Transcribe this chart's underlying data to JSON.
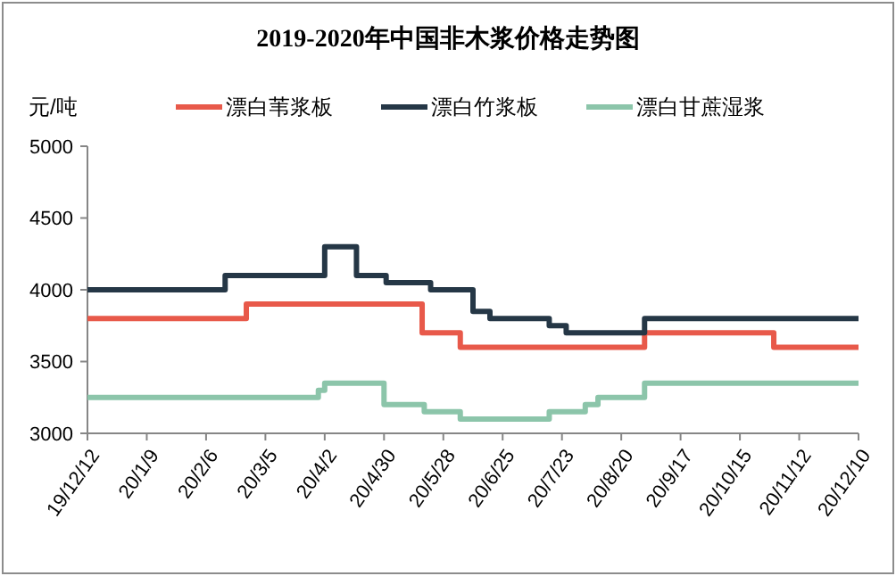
{
  "chart_data": {
    "type": "step",
    "title": "2019-2020年中国非木浆价格走势图",
    "ylabel": "元/吨",
    "legend": "top",
    "grid": false,
    "marker": "none",
    "line_style": "solid",
    "ylim": [
      3000,
      5000
    ],
    "yticks": [
      3000,
      3500,
      4000,
      4500,
      5000
    ],
    "xlim": [
      "2019-12-12",
      "2020-12-10"
    ],
    "xticks": [
      {
        "value": "2019-12-12",
        "label": "19/12/12"
      },
      {
        "value": "2020-01-09",
        "label": "20/1/9"
      },
      {
        "value": "2020-02-06",
        "label": "20/2/6"
      },
      {
        "value": "2020-03-05",
        "label": "20/3/5"
      },
      {
        "value": "2020-04-02",
        "label": "20/4/2"
      },
      {
        "value": "2020-04-30",
        "label": "20/4/30"
      },
      {
        "value": "2020-05-28",
        "label": "20/5/28"
      },
      {
        "value": "2020-06-25",
        "label": "20/6/25"
      },
      {
        "value": "2020-07-23",
        "label": "20/7/23"
      },
      {
        "value": "2020-08-20",
        "label": "20/8/20"
      },
      {
        "value": "2020-09-17",
        "label": "20/9/17"
      },
      {
        "value": "2020-10-15",
        "label": "20/10/15"
      },
      {
        "value": "2020-11-12",
        "label": "20/11/12"
      },
      {
        "value": "2020-12-10",
        "label": "20/12/10"
      }
    ],
    "series": [
      {
        "name": "漂白苇浆板",
        "color": "#e8594a",
        "x": [
          "2019-12-12",
          "2020-02-25",
          "2020-05-18",
          "2020-06-05",
          "2020-08-31",
          "2020-10-31",
          "2020-12-10"
        ],
        "values": [
          3800,
          3900,
          3700,
          3600,
          3700,
          3600,
          3600
        ]
      },
      {
        "name": "漂白竹浆板",
        "color": "#253746",
        "x": [
          "2019-12-12",
          "2020-02-15",
          "2020-04-02",
          "2020-04-17",
          "2020-05-01",
          "2020-05-22",
          "2020-06-11",
          "2020-06-19",
          "2020-07-17",
          "2020-07-25",
          "2020-08-31",
          "2020-12-10"
        ],
        "values": [
          4000,
          4100,
          4300,
          4100,
          4050,
          4000,
          3850,
          3800,
          3750,
          3700,
          3800,
          3800
        ]
      },
      {
        "name": "漂白甘蔗湿浆",
        "color": "#8cc5aa",
        "x": [
          "2019-12-12",
          "2020-03-30",
          "2020-04-02",
          "2020-04-30",
          "2020-05-19",
          "2020-06-05",
          "2020-07-17",
          "2020-08-03",
          "2020-08-09",
          "2020-08-31",
          "2020-12-10"
        ],
        "values": [
          3250,
          3300,
          3350,
          3200,
          3150,
          3100,
          3150,
          3200,
          3250,
          3350,
          3350
        ]
      }
    ]
  }
}
